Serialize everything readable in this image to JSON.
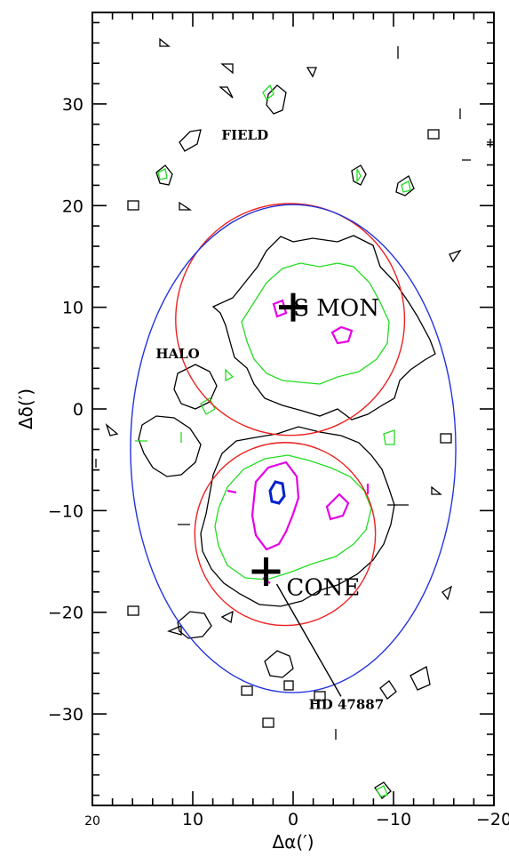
{
  "chart_data": {
    "type": "contour",
    "xlabel": "Δα(′)",
    "ylabel": "Δδ(′)",
    "xlim": [
      20,
      -20
    ],
    "ylim": [
      -39,
      39
    ],
    "xticks": [
      20,
      10,
      0,
      -10,
      -20
    ],
    "yticks": [
      30,
      20,
      10,
      0,
      -10,
      -20,
      -30
    ],
    "xtick_labels": [
      "20",
      "10",
      "0",
      "−10",
      "−20"
    ],
    "ytick_labels": [
      "30",
      "20",
      "10",
      "0",
      "−10",
      "−20",
      "−30"
    ],
    "regions": [
      {
        "name": "S MON",
        "shape": "circle",
        "center": [
          0.3,
          8.8
        ],
        "radius": 11.4,
        "color": "#ee2222"
      },
      {
        "name": "CONE",
        "shape": "circle",
        "center": [
          0.8,
          -12.3
        ],
        "radius": 9.0,
        "color": "#ee2222"
      },
      {
        "name": "HALO",
        "shape": "ellipse",
        "center": [
          0,
          -3.9
        ],
        "rx": 16.2,
        "ry": 24.0,
        "color": "#2233dd"
      }
    ],
    "markers": [
      {
        "label": "S MON",
        "x": 0,
        "y": 10,
        "symbol": "cross"
      },
      {
        "label": "HD 47887",
        "x": 2.7,
        "y": -16,
        "symbol": "cross"
      }
    ],
    "region_labels": [
      {
        "text": "S MON",
        "x": -4.3,
        "y": 9.2
      },
      {
        "text": "CONE",
        "x": -3.0,
        "y": -18.3
      },
      {
        "text": "HALO",
        "x": 11.5,
        "y": 5.0
      },
      {
        "text": "FIELD",
        "x": 4.8,
        "y": 26.5
      },
      {
        "text": "HD 47887",
        "x": -5.3,
        "y": -29.5
      }
    ]
  }
}
